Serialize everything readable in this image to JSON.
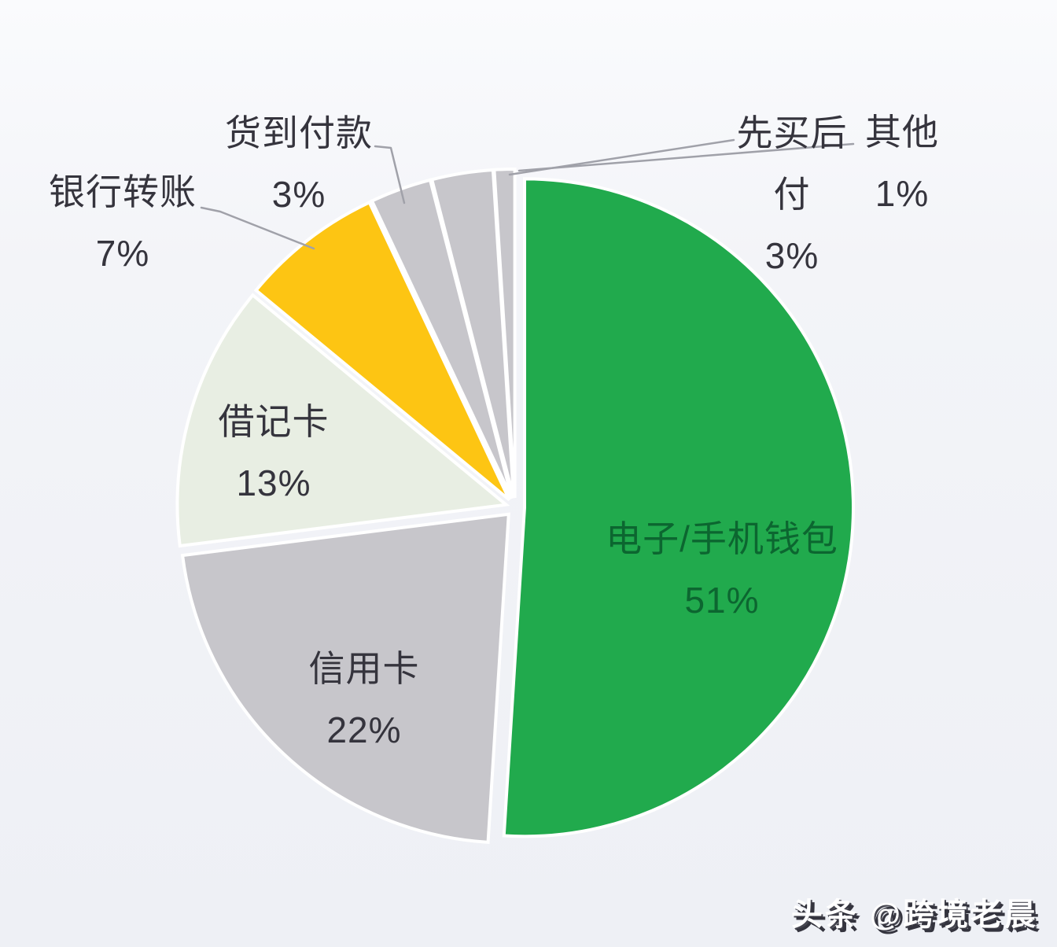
{
  "watermark": {
    "text": "头条 @跨境老晨"
  },
  "chart_data": {
    "type": "pie",
    "title": "",
    "unit": "%",
    "start_angle_deg": 0,
    "direction": "clockwise",
    "total": 100,
    "legend": "none",
    "background_color": "#f3f4f8",
    "slice_gap_color": "#ffffff",
    "leader_line_color": "#a0a1a9",
    "categories": [
      "电子/手机钱包",
      "信用卡",
      "借记卡",
      "银行转账",
      "货到付款",
      "先买后付",
      "其他"
    ],
    "values": [
      51,
      22,
      13,
      7,
      3,
      3,
      1
    ],
    "slices": [
      {
        "key": "e-wallet",
        "name": "电子/手机钱包",
        "value_pct": 51,
        "percent_label": "51%",
        "color": "#21aa4d",
        "label_color": "#0c6630",
        "label_placement": "inside",
        "leader_line": false,
        "label_lines": [
          "电子/手机钱包"
        ]
      },
      {
        "key": "credit-card",
        "name": "信用卡",
        "value_pct": 22,
        "percent_label": "22%",
        "color": "#c7c6cb",
        "label_color": "#35343d",
        "label_placement": "inside",
        "leader_line": false,
        "label_lines": [
          "信用卡"
        ]
      },
      {
        "key": "debit-card",
        "name": "借记卡",
        "value_pct": 13,
        "percent_label": "13%",
        "color": "#e8eee3",
        "label_color": "#35343d",
        "label_placement": "inside",
        "leader_line": false,
        "label_lines": [
          "借记卡"
        ]
      },
      {
        "key": "bank-transfer",
        "name": "银行转账",
        "value_pct": 7,
        "percent_label": "7%",
        "color": "#fdc513",
        "label_color": "#35343d",
        "label_placement": "outside",
        "leader_line": true,
        "label_lines": [
          "银行转账"
        ]
      },
      {
        "key": "cash-on-delivery",
        "name": "货到付款",
        "value_pct": 3,
        "percent_label": "3%",
        "color": "#c7c6cb",
        "label_color": "#35343d",
        "label_placement": "outside",
        "leader_line": true,
        "label_lines": [
          "货到付款"
        ]
      },
      {
        "key": "buy-now-pay-later",
        "name": "先买后付",
        "value_pct": 3,
        "percent_label": "3%",
        "color": "#c7c6cb",
        "label_color": "#35343d",
        "label_placement": "outside",
        "leader_line": true,
        "label_lines": [
          "先买后",
          "付"
        ]
      },
      {
        "key": "other",
        "name": "其他",
        "value_pct": 1,
        "percent_label": "1%",
        "color": "#c7c6cb",
        "label_color": "#35343d",
        "label_placement": "outside",
        "leader_line": true,
        "label_lines": [
          "其他"
        ]
      }
    ]
  }
}
